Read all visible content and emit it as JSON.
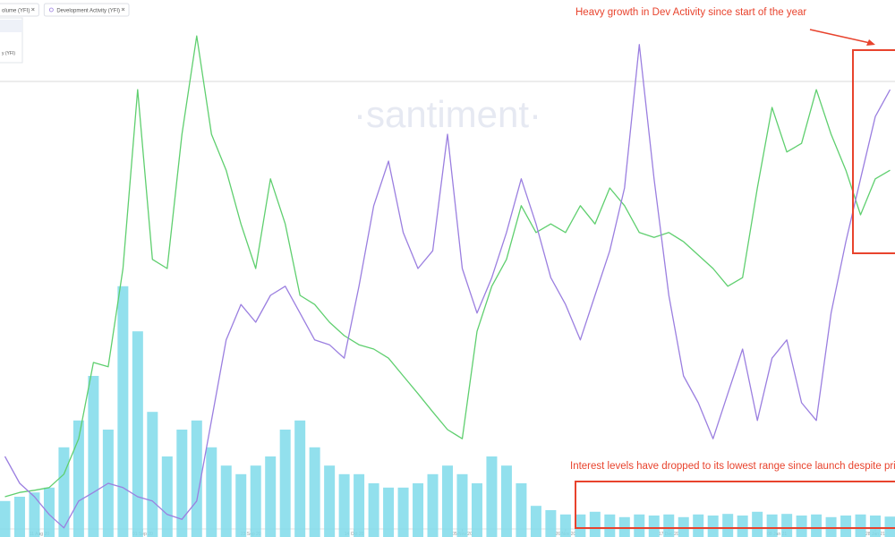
{
  "chart_data": {
    "type": "combo",
    "watermark": "·santiment·",
    "legend": [
      "olume (YFI)",
      "Development Activity (YFI)"
    ],
    "side_label": "y (YFI)",
    "annotations": [
      "Heavy growth in Dev Activity since start of the year",
      "Interest levels have dropped to its lowest range since launch despite pric"
    ],
    "x": [
      "04 Aug 20",
      "07 Aug 20",
      "10 Aug 20",
      "13 Aug 20",
      "16 Aug 20",
      "19 Aug 20",
      "22 Aug 20",
      "25 Aug 20",
      "28 Aug 20",
      "31 Aug 20",
      "03 Sep 20",
      "06 Sep 20",
      "09 Sep 20",
      "12 Sep 20",
      "15 Sep 20",
      "18 Sep 20",
      "21 Sep 20",
      "24 Sep 20",
      "27 Sep 20",
      "30 Sep 20",
      "03 Oct 20",
      "06 Oct 20",
      "09 Oct 20",
      "12 Oct 20",
      "15 Oct 20",
      "18 Oct 20",
      "21 Oct 20",
      "24 Oct 20",
      "27 Oct 20",
      "30 Oct 20",
      "02 Nov 20",
      "05 Nov 20",
      "08 Nov 20",
      "11 Nov 20",
      "14 Nov 20",
      "17 Nov 20",
      "20 Nov 20",
      "23 Nov 20",
      "26 Nov 20",
      "29 Nov 20",
      "02 Dec 20",
      "05 Dec 20",
      "08 Dec 20",
      "11 Dec 20",
      "14 Dec 20",
      "17 Dec 20",
      "20 Dec 20",
      "23 Dec 20",
      "26 Dec 20",
      "29 Dec 20",
      "01 Jan 21",
      "04 Jan 21",
      "07 Jan 21",
      "10 Jan 21",
      "13 Jan 21",
      "16 Jan 21",
      "19 Jan 21",
      "22 Jan 21",
      "25 Jan 21",
      "28 Jan 21",
      "31 Jan 21"
    ],
    "xlim": [
      "03 Aug 20",
      "01 Feb 21"
    ],
    "xticks": [
      "11 Aug 20",
      "01 Sep 20",
      "23 Sep 20",
      "14 Oct 20",
      "05 Nov 20",
      "26 Nov 20",
      "17 Dec 20",
      "08 Jan 21",
      "28 Jan 21"
    ],
    "ylim": [
      0,
      100
    ],
    "series": [
      {
        "name": "olume (YFI)",
        "kind": "bar",
        "color": "#7fdbea",
        "values": [
          6.7,
          7.5,
          8.3,
          9.2,
          16.7,
          21.7,
          30,
          20,
          46.7,
          38.3,
          23.3,
          15,
          20,
          21.7,
          16.7,
          13.3,
          11.7,
          13.3,
          15,
          20,
          21.7,
          16.7,
          13.3,
          11.7,
          11.7,
          10,
          9.2,
          9.2,
          10,
          11.7,
          13.3,
          11.7,
          10,
          15,
          13.3,
          10,
          5.8,
          5,
          4.2,
          4.2,
          4.7,
          4.2,
          3.7,
          4.2,
          4,
          4.2,
          3.7,
          4.2,
          4,
          4.3,
          4,
          4.7,
          4.2,
          4.3,
          4,
          4.2,
          3.7,
          4,
          4.2,
          4,
          3.8
        ]
      },
      {
        "kind": "line",
        "color": "#5fcf6f",
        "values": [
          7.5,
          8.3,
          8.7,
          9.2,
          11.7,
          18.3,
          32.5,
          31.7,
          50,
          83.3,
          51.7,
          50,
          75,
          93.3,
          75,
          68.3,
          58.3,
          50,
          66.7,
          58.3,
          45,
          43.3,
          40,
          37.5,
          35.8,
          35,
          33.3,
          30,
          26.7,
          23.3,
          20,
          18.3,
          38.3,
          46.7,
          51.7,
          61.7,
          56.7,
          58.3,
          56.7,
          61.7,
          58.3,
          65,
          61.7,
          56.7,
          55.8,
          56.7,
          55,
          52.5,
          50,
          46.7,
          48.3,
          65,
          80,
          71.7,
          73.3,
          83.3,
          75,
          68.3,
          60,
          66.7,
          68.3
        ]
      },
      {
        "name": "Development Activity (YFI)",
        "kind": "line",
        "color": "#9b7fe0",
        "values": [
          15,
          10,
          7.5,
          4.2,
          1.7,
          6.7,
          8.3,
          10,
          9.2,
          7.5,
          6.7,
          4.2,
          3.3,
          6.7,
          21.7,
          36.7,
          43.3,
          40,
          45,
          46.7,
          41.7,
          36.7,
          35.8,
          33.3,
          46.7,
          61.7,
          70,
          56.7,
          50,
          53.3,
          75,
          50,
          41.7,
          48.3,
          56.7,
          66.7,
          58.3,
          48.3,
          43.3,
          36.7,
          45,
          53.3,
          65,
          91.7,
          66.7,
          45,
          30,
          25,
          18.3,
          26.7,
          35,
          21.7,
          33.3,
          36.7,
          25,
          21.7,
          41.7,
          55,
          66.7,
          78.3,
          83.3
        ]
      }
    ]
  }
}
